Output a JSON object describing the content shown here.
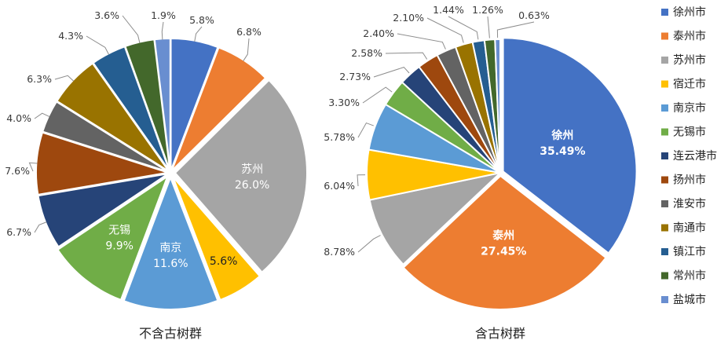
{
  "colors": [
    "#4472C4",
    "#ED7D31",
    "#A5A5A5",
    "#FFC000",
    "#5B9BD5",
    "#70AD47",
    "#264478",
    "#9E480E",
    "#636363",
    "#997300",
    "#255E91",
    "#43682B",
    "#698ED0"
  ],
  "chart_data": [
    {
      "type": "pie",
      "title": "不含古树群",
      "categories": [
        "徐州市",
        "泰州市",
        "苏州市",
        "宿迁市",
        "南京市",
        "无锡市",
        "连云港市",
        "扬州市",
        "淮安市",
        "南通市",
        "镇江市",
        "常州市",
        "盐城市"
      ],
      "values": [
        5.8,
        6.8,
        26.0,
        5.6,
        11.6,
        9.9,
        6.7,
        7.6,
        4.0,
        6.3,
        4.3,
        3.6,
        1.9
      ],
      "labels": [
        "5.8%",
        "6.8%",
        "苏州\n26.0%",
        "5.6%",
        "南京\n11.6%",
        "无锡\n9.9%",
        "6.7%",
        "7.6%",
        "4.0%",
        "6.3%",
        "4.3%",
        "3.6%",
        "1.9%"
      ]
    },
    {
      "type": "pie",
      "title": "含古树群",
      "categories": [
        "徐州市",
        "泰州市",
        "苏州市",
        "宿迁市",
        "南京市",
        "无锡市",
        "连云港市",
        "扬州市",
        "淮安市",
        "南通市",
        "镇江市",
        "常州市",
        "盐城市"
      ],
      "values": [
        35.49,
        27.45,
        8.78,
        6.04,
        5.78,
        3.3,
        2.73,
        2.58,
        2.4,
        2.1,
        1.44,
        1.26,
        0.63
      ],
      "labels": [
        "徐州\n35.49%",
        "泰州\n27.45%",
        "8.78%",
        "6.04%",
        "5.78%",
        "3.30%",
        "2.73%",
        "2.58%",
        "2.40%",
        "2.10%",
        "1.44%",
        "1.26%",
        "0.63%"
      ]
    }
  ],
  "legend": [
    "徐州市",
    "泰州市",
    "苏州市",
    "宿迁市",
    "南京市",
    "无锡市",
    "连云港市",
    "扬州市",
    "淮安市",
    "南通市",
    "镇江市",
    "常州市",
    "盐城市"
  ]
}
